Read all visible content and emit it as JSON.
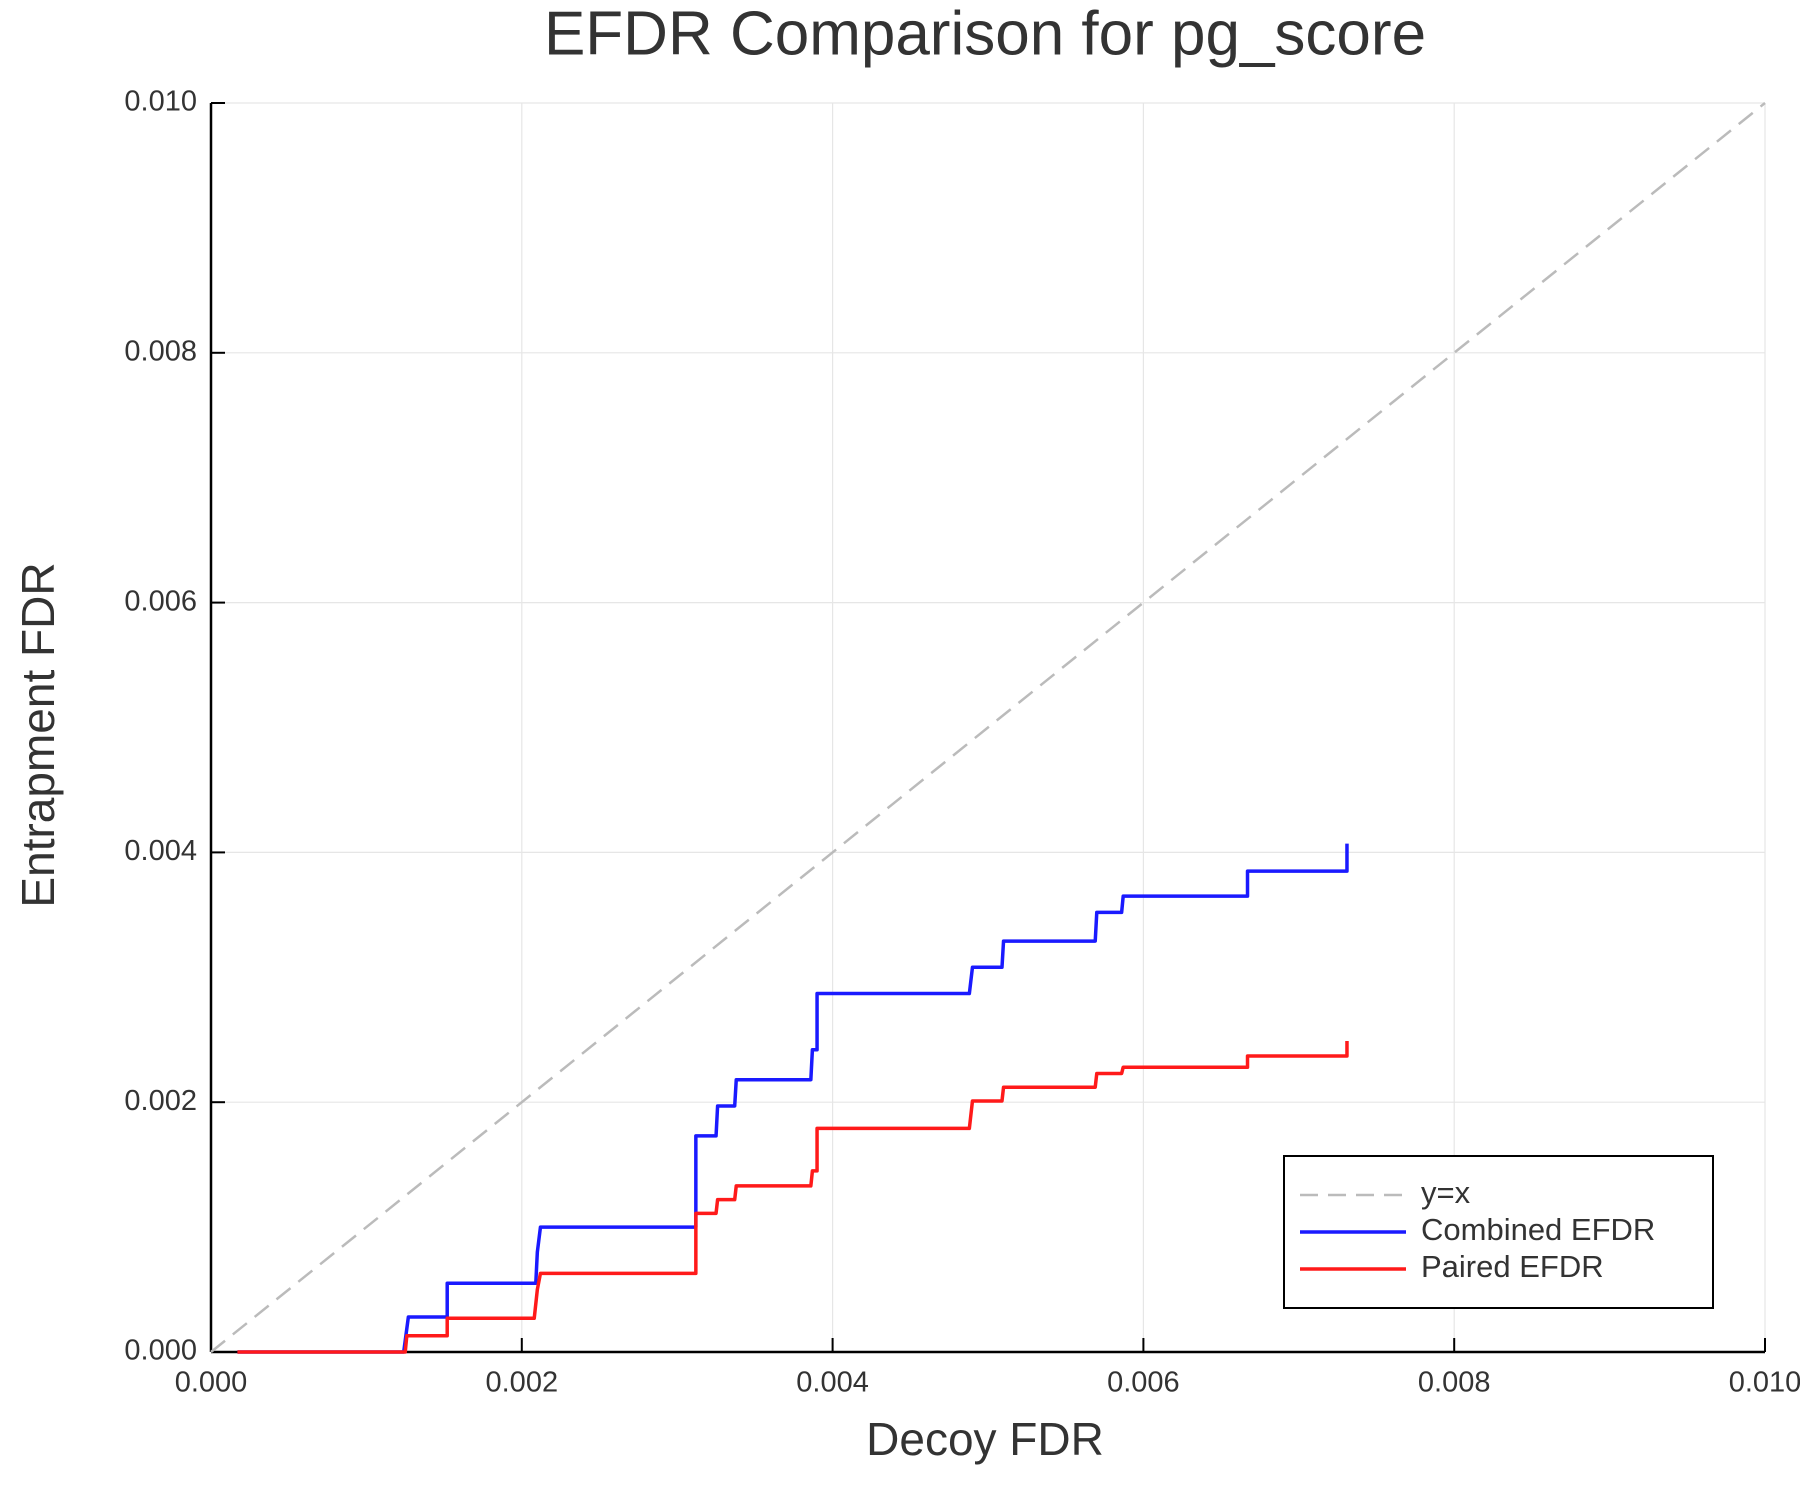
{
  "chart_data": {
    "type": "line",
    "title": "EFDR Comparison for pg_score",
    "x_label": "Decoy FDR",
    "y_label": "Entrapment FDR",
    "xlim": [
      0,
      0.01
    ],
    "ylim": [
      0,
      0.01
    ],
    "xticks": [
      {
        "value": 0,
        "label": "0.000"
      },
      {
        "value": 0.002,
        "label": "0.002"
      },
      {
        "value": 0.004,
        "label": "0.004"
      },
      {
        "value": 0.006,
        "label": "0.006"
      },
      {
        "value": 0.008,
        "label": "0.008"
      },
      {
        "value": 0.01,
        "label": "0.010"
      }
    ],
    "yticks": [
      {
        "value": 0,
        "label": "0.000"
      },
      {
        "value": 0.002,
        "label": "0.002"
      },
      {
        "value": 0.004,
        "label": "0.004"
      },
      {
        "value": 0.006,
        "label": "0.006"
      },
      {
        "value": 0.008,
        "label": "0.008"
      },
      {
        "value": 0.01,
        "label": "0.010"
      }
    ],
    "grid": true,
    "legend": "bottom right",
    "series": [
      {
        "name": "y=x",
        "color": "#bbbbbb",
        "dashed": true,
        "x": [
          0,
          0.01
        ],
        "values": [
          0,
          0.01
        ]
      },
      {
        "name": "Combined EFDR",
        "color": "#1a1aff",
        "dashed": false,
        "x": [
          0.00017,
          0.00124,
          0.00127,
          0.00152,
          0.00152,
          0.00209,
          0.0021,
          0.00212,
          0.00312,
          0.00312,
          0.00325,
          0.00326,
          0.00337,
          0.00338,
          0.00386,
          0.00387,
          0.0039,
          0.0039,
          0.00488,
          0.0049,
          0.00509,
          0.0051,
          0.00569,
          0.0057,
          0.00586,
          0.00587,
          0.00667,
          0.00667,
          0.00731,
          0.00731
        ],
        "values": [
          0,
          0,
          0.00028,
          0.00028,
          0.00055,
          0.00055,
          0.0008,
          0.001,
          0.001,
          0.00173,
          0.00173,
          0.00197,
          0.00197,
          0.00218,
          0.00218,
          0.00242,
          0.00242,
          0.00287,
          0.00287,
          0.00308,
          0.00308,
          0.00329,
          0.00329,
          0.00352,
          0.00352,
          0.00365,
          0.00365,
          0.00385,
          0.00385,
          0.00407
        ]
      },
      {
        "name": "Paired EFDR",
        "color": "#ff1a1a",
        "dashed": false,
        "x": [
          0.00017,
          0.00125,
          0.00126,
          0.00152,
          0.00152,
          0.00208,
          0.0021,
          0.00212,
          0.00312,
          0.00312,
          0.00325,
          0.00326,
          0.00337,
          0.00338,
          0.00386,
          0.00387,
          0.0039,
          0.0039,
          0.00488,
          0.0049,
          0.00509,
          0.0051,
          0.00569,
          0.0057,
          0.00586,
          0.00587,
          0.00667,
          0.00667,
          0.00731,
          0.00731
        ],
        "values": [
          0,
          0,
          0.00013,
          0.00013,
          0.00027,
          0.00027,
          0.0005,
          0.00063,
          0.00063,
          0.00111,
          0.00111,
          0.00122,
          0.00122,
          0.00133,
          0.00133,
          0.00145,
          0.00145,
          0.00179,
          0.00179,
          0.00201,
          0.00201,
          0.00212,
          0.00212,
          0.00223,
          0.00223,
          0.00228,
          0.00228,
          0.00237,
          0.00237,
          0.00249
        ]
      }
    ]
  }
}
